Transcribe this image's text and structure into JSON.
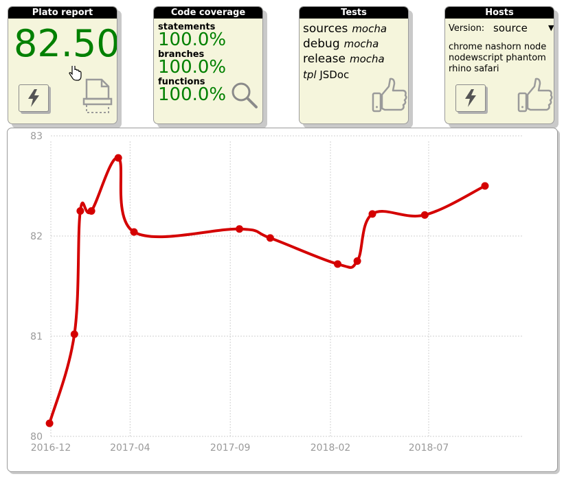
{
  "plato": {
    "title": "Plato report",
    "score": "82.50",
    "icons": [
      "lightning-icon",
      "print-icon"
    ]
  },
  "coverage": {
    "title": "Code coverage",
    "statements_label": "statements",
    "statements_value": "100.0%",
    "branches_label": "branches",
    "branches_value": "100.0%",
    "functions_label": "functions",
    "functions_value": "100.0%",
    "icon": "magnifier-icon"
  },
  "tests": {
    "title": "Tests",
    "rows": [
      {
        "name": "sources",
        "runner": "mocha"
      },
      {
        "name": "debug",
        "runner": "mocha"
      },
      {
        "name": "release",
        "runner": "mocha"
      }
    ],
    "tpl_label": "tpl",
    "tpl_value": "JSDoc",
    "icon": "thumbs-up-icon"
  },
  "hosts": {
    "title": "Hosts",
    "version_label": "Version:",
    "version_selected": "source",
    "list": "chrome nashorn node nodewscript phantom rhino safari",
    "icons": [
      "lightning-icon",
      "thumbs-up-icon"
    ]
  },
  "colors": {
    "card_bg": "#f5f5dc",
    "score_green": "#008000",
    "line_red": "#d40000"
  },
  "chart_data": {
    "type": "line",
    "title": "",
    "xlabel": "",
    "ylabel": "",
    "ylim": [
      80,
      83
    ],
    "y_ticks": [
      "80",
      "81",
      "82",
      "83"
    ],
    "x_ticks": [
      "2016-12",
      "2017-04",
      "2017-09",
      "2018-02",
      "2018-07"
    ],
    "x_tick_dates": [
      "2016-12-01",
      "2017-04-01",
      "2017-09-01",
      "2018-02-01",
      "2018-07-01"
    ],
    "grid": true,
    "series": [
      {
        "points": [
          {
            "x": "2016-11-29",
            "y": 80.13
          },
          {
            "x": "2017-01-06",
            "y": 81.02
          },
          {
            "x": "2017-01-15",
            "y": 82.25
          },
          {
            "x": "2017-02-01",
            "y": 82.25
          },
          {
            "x": "2017-03-14",
            "y": 82.78
          },
          {
            "x": "2017-04-07",
            "y": 82.04
          },
          {
            "x": "2017-09-15",
            "y": 82.07
          },
          {
            "x": "2017-11-01",
            "y": 81.98
          },
          {
            "x": "2018-02-12",
            "y": 81.72
          },
          {
            "x": "2018-03-14",
            "y": 81.75
          },
          {
            "x": "2018-04-06",
            "y": 82.22
          },
          {
            "x": "2018-06-25",
            "y": 82.21
          },
          {
            "x": "2018-09-25",
            "y": 82.5
          }
        ]
      }
    ]
  }
}
